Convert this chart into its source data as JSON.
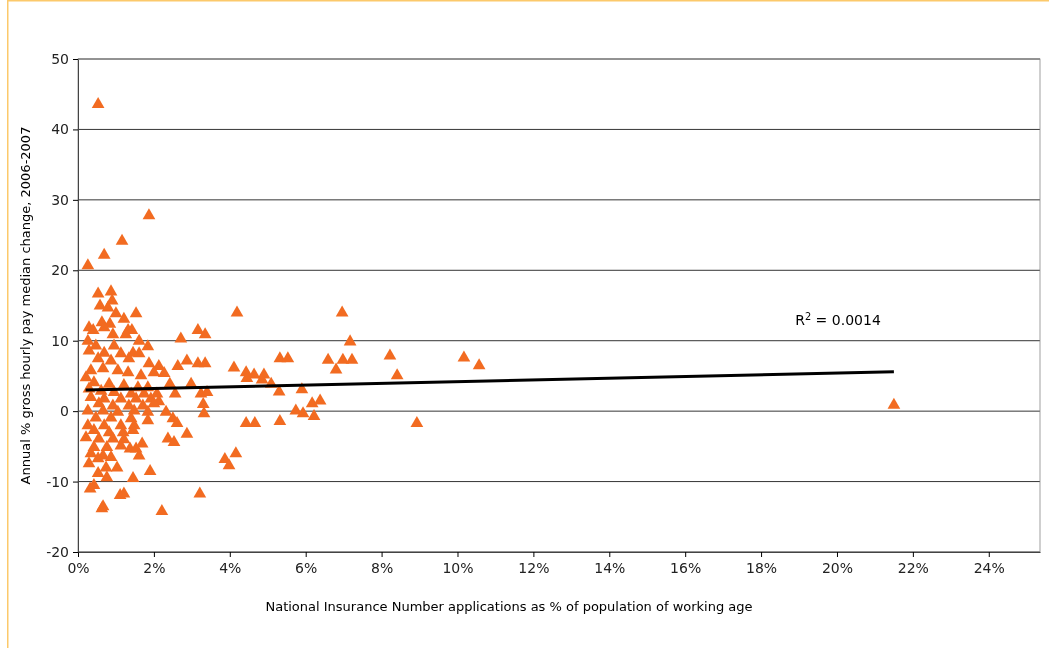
{
  "chart_data": {
    "type": "scatter",
    "xlabel": "National Insurance Number applications as % of population of working age",
    "ylabel": "Annual % gross hourly pay median change, 2006-2007",
    "xlim": [
      0,
      25.35
    ],
    "ylim": [
      -20,
      50
    ],
    "xticks": [
      {
        "value": 0,
        "label": "0%"
      },
      {
        "value": 2,
        "label": "2%"
      },
      {
        "value": 4,
        "label": "4%"
      },
      {
        "value": 6,
        "label": "6%"
      },
      {
        "value": 8,
        "label": "8%"
      },
      {
        "value": 10,
        "label": "10%"
      },
      {
        "value": 12,
        "label": "12%"
      },
      {
        "value": 14,
        "label": "14%"
      },
      {
        "value": 16,
        "label": "16%"
      },
      {
        "value": 18,
        "label": "18%"
      },
      {
        "value": 20,
        "label": "20%"
      },
      {
        "value": 22,
        "label": "22%"
      },
      {
        "value": 24,
        "label": "24%"
      }
    ],
    "yticks": [
      -20,
      -10,
      0,
      10,
      20,
      30,
      40,
      50
    ],
    "grid": "y",
    "marker": "triangle",
    "annotations": [
      "R$^{2}$ = 0.0014"
    ],
    "series": [
      {
        "color": "#f26b21",
        "x": [
          0.53,
          1.87,
          1.16,
          0.69,
          0.26,
          0.53,
          0.87,
          0.9,
          0.58,
          0.79,
          1.0,
          1.53,
          1.21,
          0.29,
          0.63,
          0.84,
          0.69,
          0.4,
          0.92,
          1.32,
          1.42,
          1.26,
          0.26,
          2.71,
          3.16,
          3.35,
          1.61,
          0.47,
          0.95,
          1.84,
          0.29,
          1.45,
          0.69,
          1.13,
          1.61,
          0.53,
          0.87,
          1.34,
          1.87,
          2.13,
          2.87,
          3.16,
          2.63,
          4.11,
          4.43,
          4.64,
          4.9,
          0.34,
          0.21,
          0.66,
          1.05,
          1.32,
          1.66,
          2.0,
          2.27,
          2.42,
          2.98,
          0.42,
          0.82,
          1.21,
          1.58,
          1.84,
          0.29,
          0.61,
          0.95,
          1.4,
          1.74,
          2.08,
          2.56,
          3.24,
          0.34,
          0.69,
          1.13,
          1.53,
          1.92,
          2.13,
          0.55,
          0.92,
          1.34,
          1.71,
          2.0,
          0.26,
          0.66,
          1.05,
          1.48,
          1.84,
          2.32,
          3.32,
          0.47,
          0.87,
          1.4,
          1.84,
          2.5,
          0.26,
          0.69,
          1.13,
          1.48,
          2.61,
          4.43,
          4.66,
          0.42,
          0.82,
          1.19,
          1.45,
          0.21,
          0.55,
          0.92,
          1.21,
          2.37,
          2.53,
          2.87,
          0.42,
          0.76,
          1.13,
          1.37,
          1.69,
          0.34,
          0.66,
          0.87,
          1.53,
          1.61,
          3.87,
          3.98,
          4.16,
          0.29,
          0.53,
          0.74,
          1.03,
          0.53,
          0.76,
          1.45,
          1.9,
          0.32,
          0.42,
          1.11,
          1.21,
          3.21,
          0.66,
          0.63,
          2.21,
          4.19,
          6.96,
          7.17,
          3.35,
          4.45,
          4.85,
          5.09,
          5.32,
          5.53,
          6.59,
          6.8,
          6.98,
          7.22,
          8.22,
          8.41,
          10.17,
          10.57,
          8.93,
          5.3,
          5.9,
          3.4,
          3.3,
          5.74,
          5.93,
          6.17,
          6.38,
          6.22,
          5.32,
          21.5
        ],
        "values": [
          43.7,
          27.9,
          24.3,
          22.3,
          20.8,
          16.8,
          17.1,
          15.8,
          15.1,
          14.8,
          14.0,
          14.0,
          13.2,
          12.0,
          12.7,
          12.5,
          12.0,
          11.6,
          11.0,
          11.6,
          11.6,
          11.0,
          10.1,
          10.4,
          11.6,
          11.0,
          10.1,
          9.4,
          9.4,
          9.3,
          8.7,
          8.4,
          8.4,
          8.3,
          8.3,
          7.6,
          7.3,
          7.6,
          6.9,
          6.5,
          7.3,
          6.9,
          6.5,
          6.3,
          5.6,
          5.3,
          5.3,
          5.9,
          4.9,
          6.2,
          5.9,
          5.6,
          5.2,
          5.6,
          5.5,
          4.0,
          4.0,
          4.2,
          4.0,
          3.8,
          3.5,
          3.5,
          3.3,
          3.0,
          2.8,
          2.6,
          2.6,
          2.6,
          2.6,
          2.6,
          2.1,
          1.9,
          1.9,
          1.9,
          1.9,
          1.5,
          1.2,
          0.9,
          0.9,
          0.9,
          1.2,
          0.2,
          0.2,
          0.0,
          0.2,
          0.0,
          0.0,
          -0.2,
          -0.8,
          -0.8,
          -0.9,
          -1.2,
          -0.9,
          -1.9,
          -1.9,
          -1.9,
          -1.9,
          -1.6,
          -1.6,
          -1.6,
          -2.6,
          -2.9,
          -2.9,
          -2.6,
          -3.6,
          -3.8,
          -3.8,
          -3.9,
          -3.8,
          -4.3,
          -3.1,
          -5.0,
          -5.0,
          -4.8,
          -5.2,
          -4.5,
          -5.9,
          -6.2,
          -6.4,
          -5.2,
          -6.2,
          -6.7,
          -7.6,
          -5.9,
          -7.3,
          -6.6,
          -7.9,
          -7.9,
          -8.7,
          -9.3,
          -9.4,
          -8.4,
          -10.9,
          -10.4,
          -11.8,
          -11.6,
          -11.6,
          -13.4,
          -13.7,
          -14.1,
          14.1,
          14.1,
          10.0,
          6.9,
          4.8,
          4.6,
          4.0,
          7.6,
          7.6,
          7.4,
          6.0,
          7.4,
          7.4,
          8.0,
          5.2,
          7.7,
          6.6,
          -1.6,
          2.9,
          3.2,
          2.8,
          1.1,
          0.2,
          -0.2,
          1.2,
          1.6,
          -0.6,
          -1.3,
          1.0
        ]
      },
      {
        "type": "line",
        "color": "#000000",
        "marker": "none",
        "line_style": "solid",
        "x": [
          0.2,
          21.5
        ],
        "values": [
          3.0,
          5.6
        ]
      }
    ]
  }
}
